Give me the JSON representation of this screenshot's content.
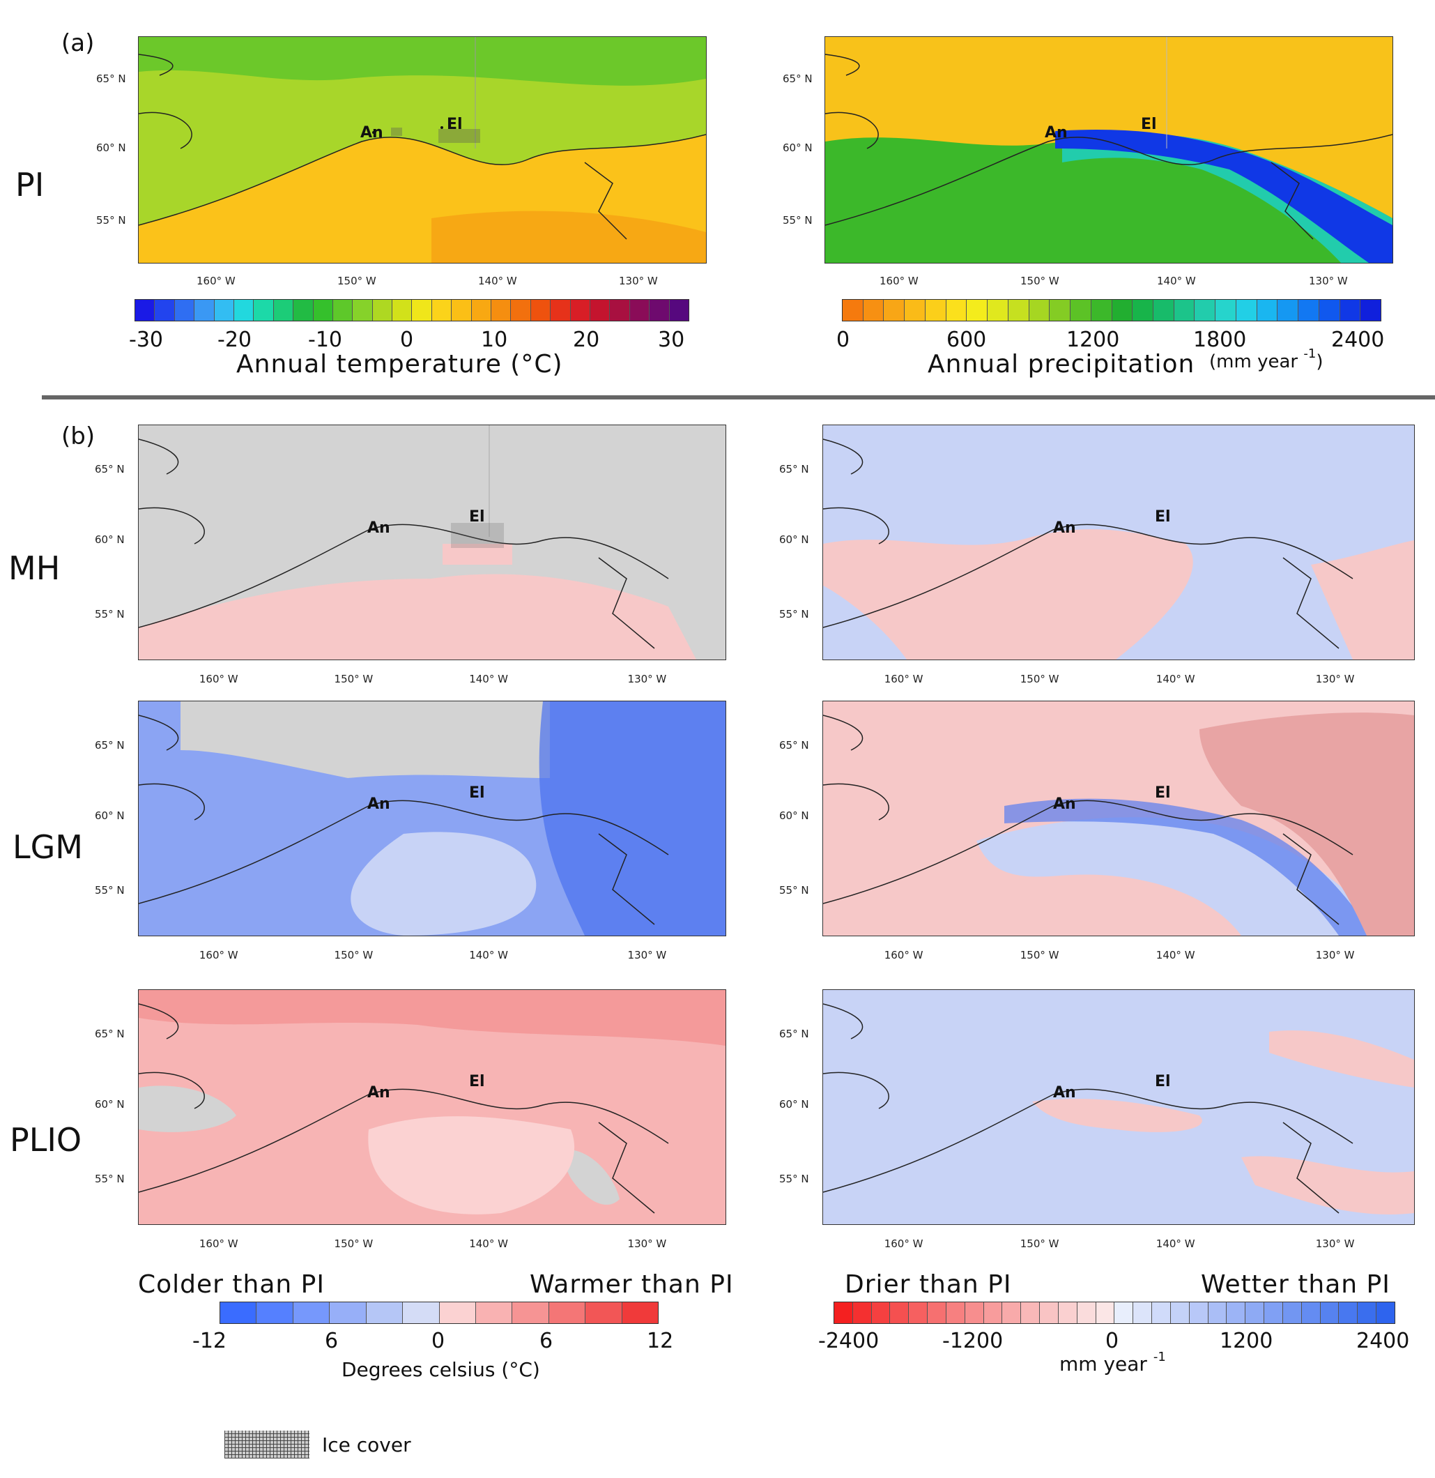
{
  "panel_labels": {
    "a": "(a)",
    "b": "(b)"
  },
  "rows": {
    "pi": "PI",
    "mh": "MH",
    "lgm": "LGM",
    "plio": "PLIO"
  },
  "sites": {
    "anchorage": "An",
    "eliot": "El"
  },
  "axes": {
    "lon_ticks": [
      "160° W",
      "150° W",
      "140° W",
      "130° W"
    ],
    "lat_ticks": [
      "65° N",
      "60° N",
      "55° N"
    ]
  },
  "colorbars": {
    "temperature": {
      "title": "Annual temperature (°C)",
      "ticks": [
        "-30",
        "-20",
        "-10",
        "0",
        "10",
        "20",
        "30"
      ],
      "colors": [
        "#1a1ae6",
        "#2244ee",
        "#2f6ef2",
        "#3a98f4",
        "#33bdf2",
        "#22d8de",
        "#1cd9a8",
        "#1ccc78",
        "#22bb44",
        "#35c02c",
        "#5ec82a",
        "#86d22a",
        "#aed822",
        "#d2e11a",
        "#f0e61a",
        "#fbd31a",
        "#fbbf16",
        "#f8a812",
        "#f58e10",
        "#f2700e",
        "#ee520e",
        "#e6321a",
        "#d81e26",
        "#c4142e",
        "#a81040",
        "#8a0c58",
        "#6e0a6e",
        "#56087e"
      ]
    },
    "precipitation": {
      "title": "Annual precipitation",
      "unit": "mm year",
      "unit_sup": "-1",
      "ticks": [
        "0",
        "600",
        "1200",
        "1800",
        "2400"
      ],
      "colors": [
        "#f57a0e",
        "#f79012",
        "#f8a616",
        "#fabb18",
        "#fbcf1a",
        "#fbe01c",
        "#f4ec1c",
        "#e0e81e",
        "#c6e020",
        "#a6d622",
        "#84cc24",
        "#5cc226",
        "#3cb82a",
        "#22ae30",
        "#18b44a",
        "#18bb6a",
        "#1cc48a",
        "#22ccac",
        "#26d4cc",
        "#22cfe6",
        "#1ab6f0",
        "#1598f2",
        "#1278f2",
        "#1058ee",
        "#1038e6",
        "#1020dc"
      ]
    },
    "temp_anomaly": {
      "left": "Colder than PI",
      "right": "Warmer than PI",
      "title": "Degrees celsius (°C)",
      "ticks": [
        "-12",
        "6",
        "0",
        "6",
        "12"
      ],
      "colors": [
        "#3a6cff",
        "#5580ff",
        "#7698fc",
        "#97aff8",
        "#b5c6f6",
        "#d4dcf6",
        "#fbd2d2",
        "#f9b2b2",
        "#f69494",
        "#f47676",
        "#f25656",
        "#f03a3a"
      ]
    },
    "precip_anomaly": {
      "left": "Drier than PI",
      "right": "Wetter than PI",
      "unit": "mm year",
      "unit_sup": "-1",
      "ticks": [
        "-2400",
        "-1200",
        "0",
        "1200",
        "2400"
      ],
      "colors": [
        "#f42020",
        "#f43030",
        "#f54040",
        "#f55050",
        "#f66060",
        "#f67070",
        "#f78080",
        "#f78e8e",
        "#f89c9c",
        "#f8aaaa",
        "#f9b8b8",
        "#f9c4c4",
        "#fad0d0",
        "#fadcdc",
        "#fbe6e6",
        "#e8eefc",
        "#dce4fa",
        "#d0dbfa",
        "#c4d2f8",
        "#b8c8f8",
        "#aabef6",
        "#9cb4f6",
        "#8eaaf4",
        "#80a0f4",
        "#7296f2",
        "#648cf2",
        "#5682f0",
        "#4878f0",
        "#3a6eee",
        "#2e64ee"
      ]
    }
  },
  "legend": {
    "ice_cover": "Ice cover"
  },
  "colors": {
    "pi_temp_land": "#a8d62a",
    "pi_temp_sea": "#fbc21a",
    "pi_temp_north": "#6cc82a",
    "pi_prec_land": "#f8c21a",
    "pi_prec_sea": "#3cb82a",
    "pi_prec_coast": "#1038e6",
    "anom_neutral": "#d3d3d3",
    "warm": "#f7b4b4",
    "cold": "#c8d3f6",
    "strong_cold": "#5a7ef0",
    "wet": "#c8d3f6",
    "dry": "#f6c8c8"
  }
}
